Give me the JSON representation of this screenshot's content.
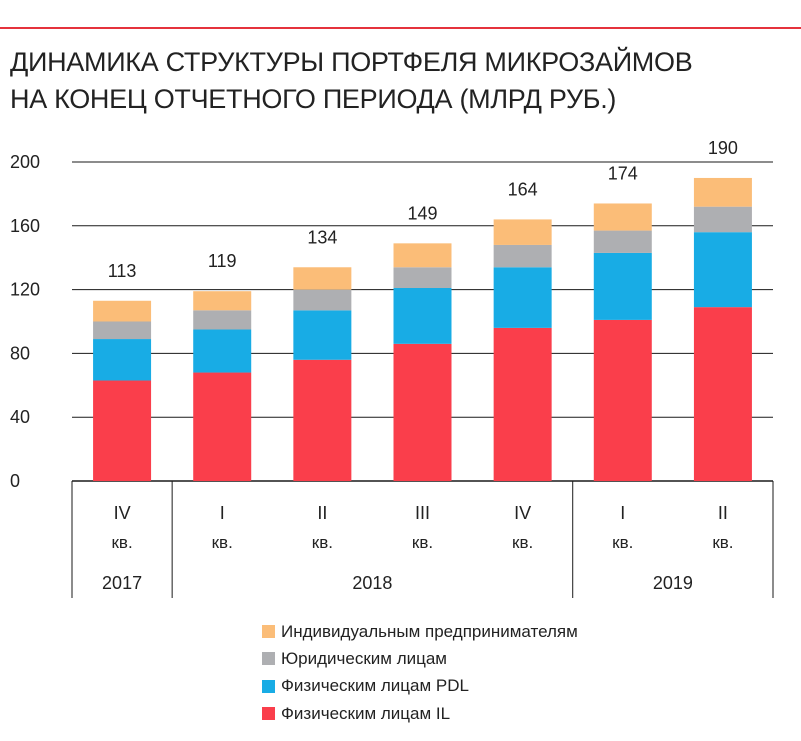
{
  "title_lines": [
    "ДИНАМИКА СТРУКТУРЫ ПОРТФЕЛЯ МИКРОЗАЙМОВ",
    "НА КОНЕЦ ОТЧЕТНОГО ПЕРИОДА (МЛРД РУБ.)"
  ],
  "colors": {
    "accent_rule": "#e5323c",
    "ip": "#fbbd78",
    "legal": "#aeafb2",
    "pdl": "#18ace5",
    "il": "#fa3e4b"
  },
  "chart_data": {
    "type": "bar",
    "stacked": true,
    "categories": [
      {
        "quarter": "IV",
        "suffix": "кв.",
        "year": "2017"
      },
      {
        "quarter": "I",
        "suffix": "кв.",
        "year": "2018"
      },
      {
        "quarter": "II",
        "suffix": "кв.",
        "year": "2018"
      },
      {
        "quarter": "III",
        "suffix": "кв.",
        "year": "2018"
      },
      {
        "quarter": "IV",
        "suffix": "кв.",
        "year": "2018"
      },
      {
        "quarter": "I",
        "suffix": "кв.",
        "year": "2019"
      },
      {
        "quarter": "II",
        "suffix": "кв.",
        "year": "2019"
      }
    ],
    "year_groups": [
      {
        "label": "2017",
        "span": 1
      },
      {
        "label": "2018",
        "span": 4
      },
      {
        "label": "2019",
        "span": 2
      }
    ],
    "series": [
      {
        "name": "Физическим лицам IL",
        "color_key": "il",
        "values": [
          63,
          68,
          76,
          86,
          96,
          101,
          109
        ]
      },
      {
        "name": "Физическим лицам PDL",
        "color_key": "pdl",
        "values": [
          26,
          27,
          31,
          35,
          38,
          42,
          47
        ]
      },
      {
        "name": "Юридическим лицам",
        "color_key": "legal",
        "values": [
          11,
          12,
          13,
          13,
          14,
          14,
          16
        ]
      },
      {
        "name": "Индивидуальным предпринимателям",
        "color_key": "ip",
        "values": [
          13,
          12,
          14,
          15,
          16,
          17,
          18
        ]
      }
    ],
    "totals": [
      "113",
      "119",
      "134",
      "149",
      "164",
      "174",
      "190"
    ],
    "yticks": [
      "0",
      "40",
      "80",
      "120",
      "160",
      "200"
    ],
    "ylim": [
      0,
      200
    ],
    "grid": true,
    "legend_position": "bottom",
    "legend_order": [
      "ip",
      "legal",
      "pdl",
      "il"
    ]
  }
}
